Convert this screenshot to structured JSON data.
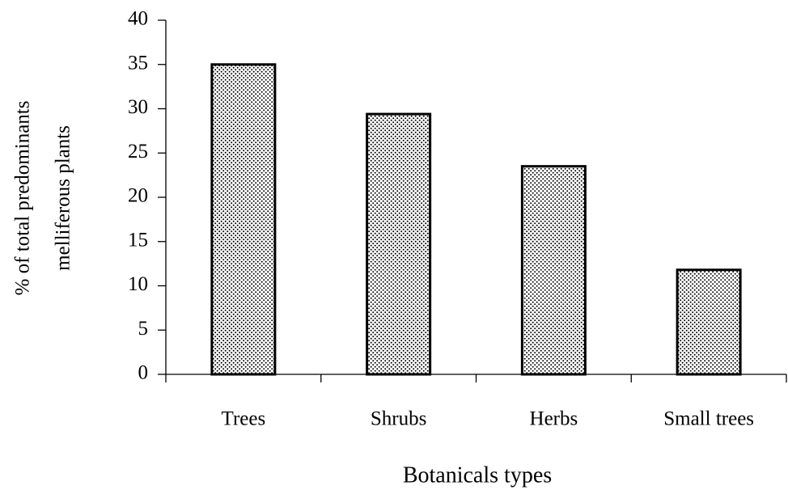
{
  "chart_data": {
    "type": "bar",
    "ylabel": [
      "% of total predominants",
      "melliferous plants"
    ],
    "xlabel": "Botanicals types",
    "categories": [
      "Trees",
      "Shrubs",
      "Herbs",
      "Small trees"
    ],
    "values": [
      35,
      29.4,
      23.5,
      11.8
    ],
    "color": "#000000",
    "ylim": [
      0,
      40
    ],
    "yticks": [
      0,
      5,
      10,
      15,
      20,
      25,
      30,
      35,
      40
    ],
    "grid": false
  }
}
